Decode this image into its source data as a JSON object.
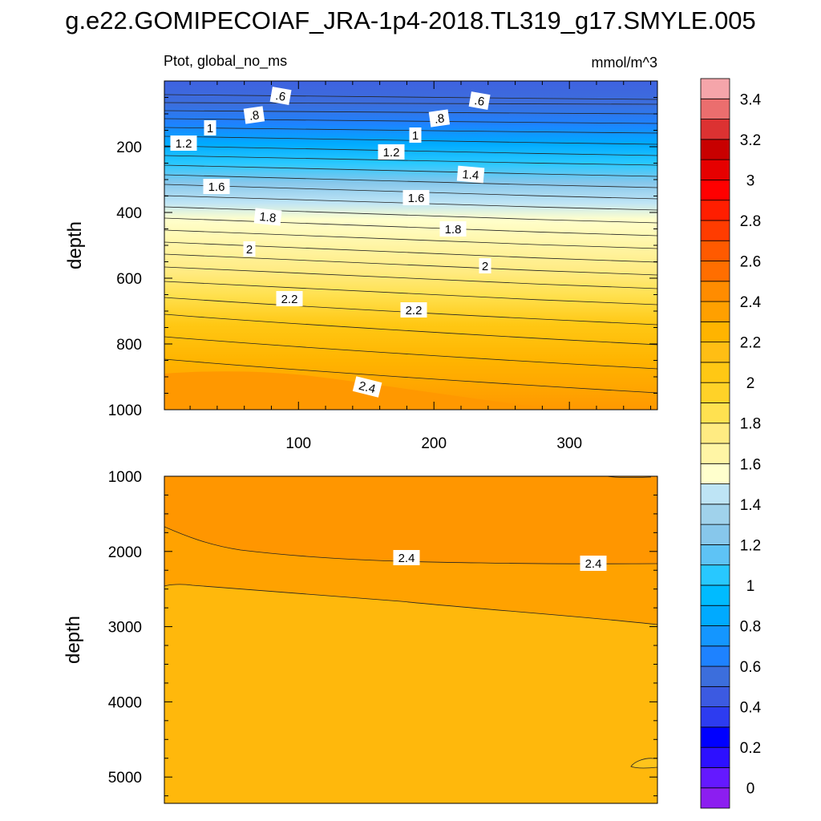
{
  "chart_data": {
    "type": "contour",
    "title": "g.e22.GOMIPECOIAF_JRA-1p4-2018.TL319_g17.SMYLE.005",
    "left_title": "Ptot, global_no_ms",
    "right_title": "mmol/m^3",
    "x_ticks": [
      "100",
      "200",
      "300"
    ],
    "xlim": [
      1,
      365
    ],
    "panels": [
      {
        "name": "upper",
        "ylabel": "depth",
        "ylim": [
          1000,
          0
        ],
        "y_ticks": [
          "200",
          "400",
          "600",
          "800",
          "1000"
        ],
        "contour_labels": [
          ".6",
          ".6",
          ".8",
          ".8",
          "1",
          "1",
          "1.2",
          "1.2",
          "1.4",
          "1.6",
          "1.6",
          "1.8",
          "1.8",
          "2",
          "2",
          "2.2",
          "2.2",
          "2.4"
        ]
      },
      {
        "name": "lower",
        "ylabel": "depth",
        "ylim": [
          5350,
          1000
        ],
        "y_ticks": [
          "1000",
          "2000",
          "3000",
          "4000",
          "5000"
        ],
        "contour_labels": [
          "2.4",
          "2.4"
        ]
      }
    ],
    "colorbar": {
      "labels": [
        "0",
        "0.2",
        "0.4",
        "0.6",
        "0.8",
        "1",
        "1.2",
        "1.4",
        "1.6",
        "1.8",
        "2",
        "2.2",
        "2.4",
        "2.6",
        "2.8",
        "3",
        "3.2",
        "3.4"
      ],
      "colors": [
        "#8c1ef0",
        "#6419ff",
        "#2d10ff",
        "#0000ff",
        "#2d3cf0",
        "#3c5ae1",
        "#3c6edc",
        "#1e82ff",
        "#1496ff",
        "#00aaff",
        "#00bbff",
        "#28c8ff",
        "#5ec3f5",
        "#87c7eb",
        "#a0d2eb",
        "#bee4f5",
        "#ffffcd",
        "#fff5a5",
        "#ffeb82",
        "#ffe150",
        "#ffd228",
        "#ffc814",
        "#ffbe14",
        "#ffb400",
        "#ffa000",
        "#ff8c00",
        "#ff6e00",
        "#ff5a00",
        "#ff3c00",
        "#ff1e00",
        "#ff0000",
        "#e60000",
        "#c80000",
        "#dc3232",
        "#eb6e6e",
        "#f5a5aa"
      ]
    }
  }
}
